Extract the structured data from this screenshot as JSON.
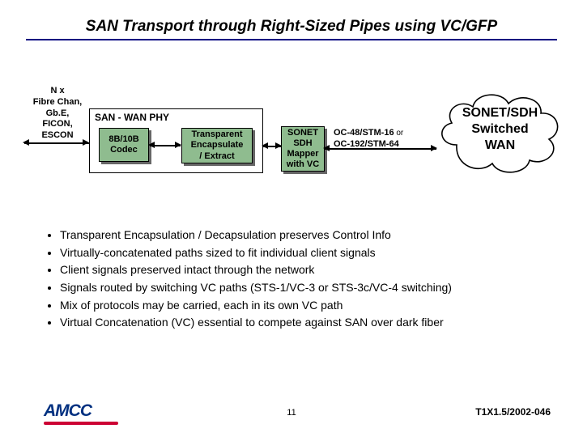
{
  "title": "SAN Transport through Right-Sized Pipes using VC/GFP",
  "input_label": "N x\nFibre Chan,\nGb.E,\nFICON,\nESCON",
  "san_wan": {
    "label": "SAN - WAN PHY",
    "codec": "8B/10B\nCodec",
    "encap": "Transparent\nEncapsulate\n/ Extract"
  },
  "mapper": "SONET\nSDH\nMapper\nwith VC",
  "rates": {
    "line1": "OC-48/STM-16",
    "or": " or",
    "line2": "OC-192/STM-64"
  },
  "cloud": "SONET/SDH\nSwitched\nWAN",
  "bullets": [
    "Transparent Encapsulation / Decapsulation preserves Control Info",
    "Virtually-concatenated paths sized to fit individual client signals",
    "Client signals preserved intact through the network",
    "Signals routed by switching VC paths (STS-1/VC-3 or STS-3c/VC-4 switching)",
    "Mix of protocols may be carried, each in its own VC path",
    "Virtual Concatenation (VC) essential to compete against SAN over dark fiber"
  ],
  "logo": "AMCC",
  "page": "11",
  "doc_id": "T1X1.5/2002-046",
  "colors": {
    "title_underline": "#000080",
    "box_fill": "#8fbc8f",
    "shadow": "#666666",
    "logo": "#003080",
    "logo_underline": "#cc0033"
  }
}
